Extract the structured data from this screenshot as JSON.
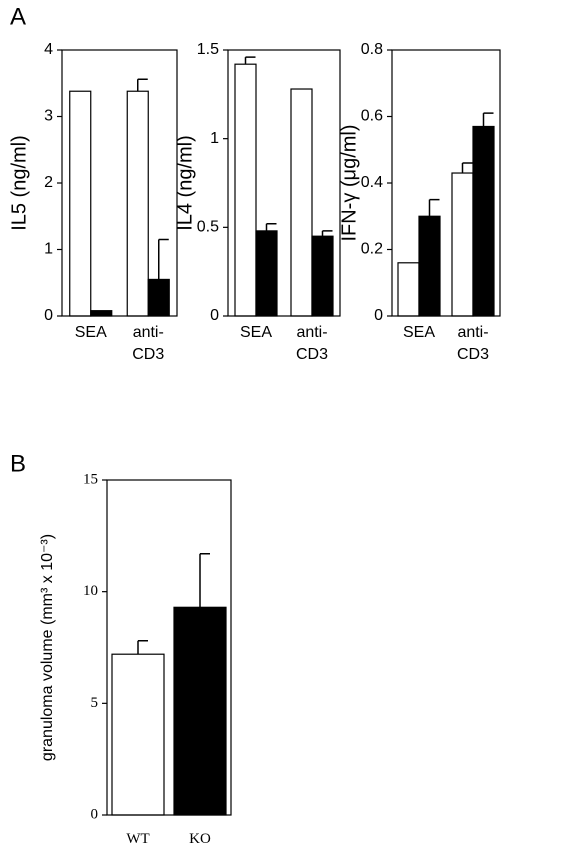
{
  "chart_data": [
    {
      "type": "bar",
      "panel": "A",
      "ylabel": "IL5 (ng/ml)",
      "categories": [
        "SEA",
        "anti-\nCD3"
      ],
      "ylim": [
        0,
        4
      ],
      "yticks": [
        0,
        1,
        2,
        3,
        4
      ],
      "series": [
        {
          "color": "#ffffff",
          "values": [
            3.38,
            3.38
          ],
          "errors": [
            null,
            0.18
          ]
        },
        {
          "color": "#000000",
          "values": [
            0.08,
            0.55
          ],
          "errors": [
            null,
            0.6
          ]
        }
      ]
    },
    {
      "type": "bar",
      "ylabel": "IL4 (ng/ml)",
      "categories": [
        "SEA",
        "anti-\nCD3"
      ],
      "ylim": [
        0,
        1.5
      ],
      "yticks": [
        0,
        0.5,
        1,
        1.5
      ],
      "series": [
        {
          "color": "#ffffff",
          "values": [
            1.42,
            1.28
          ],
          "errors": [
            0.04,
            null
          ]
        },
        {
          "color": "#000000",
          "values": [
            0.48,
            0.45
          ],
          "errors": [
            0.04,
            0.03
          ]
        }
      ]
    },
    {
      "type": "bar",
      "ylabel": "IFN-γ (μg/ml)",
      "categories": [
        "SEA",
        "anti-\nCD3"
      ],
      "ylim": [
        0,
        0.8
      ],
      "yticks": [
        0,
        0.2,
        0.4,
        0.6,
        0.8
      ],
      "series": [
        {
          "color": "#ffffff",
          "values": [
            0.16,
            0.43
          ],
          "errors": [
            null,
            0.03
          ]
        },
        {
          "color": "#000000",
          "values": [
            0.3,
            0.57
          ],
          "errors": [
            0.05,
            0.04
          ]
        }
      ]
    },
    {
      "type": "bar",
      "panel": "B",
      "ylabel": "granuloma volume (mm³ x 10⁻³)",
      "categories": [
        "WT",
        "KO"
      ],
      "ylim": [
        0,
        15
      ],
      "yticks": [
        0,
        5,
        10,
        15
      ],
      "series": [
        {
          "colors": [
            "#ffffff",
            "#000000"
          ],
          "values": [
            7.2,
            9.3
          ],
          "errors": [
            0.6,
            2.4
          ]
        }
      ]
    }
  ]
}
